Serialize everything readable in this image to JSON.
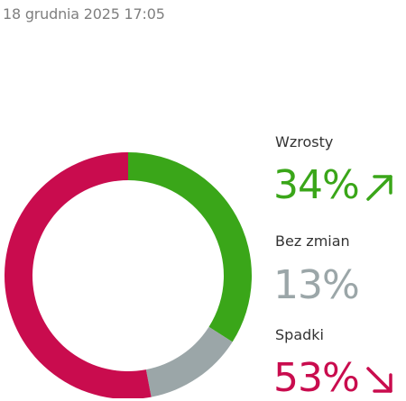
{
  "header": {
    "timestamp": "18 grudnia 2025 17:05"
  },
  "chart_data": {
    "type": "pie",
    "categories": [
      "Wzrosty",
      "Bez zmian",
      "Spadki"
    ],
    "values": [
      34,
      13,
      53
    ],
    "colors": [
      "#3aa619",
      "#9ba6a8",
      "#c90c4e"
    ],
    "title": "",
    "xlabel": "",
    "ylabel": ""
  },
  "legend": {
    "items": [
      {
        "label": "Wzrosty",
        "value": "34%",
        "color": "#3aa619",
        "icon": "arrow-up-right-icon"
      },
      {
        "label": "Bez zmian",
        "value": "13%",
        "color": "#9ba6a8",
        "icon": ""
      },
      {
        "label": "Spadki",
        "value": "53%",
        "color": "#c90c4e",
        "icon": "arrow-down-right-icon"
      }
    ]
  }
}
